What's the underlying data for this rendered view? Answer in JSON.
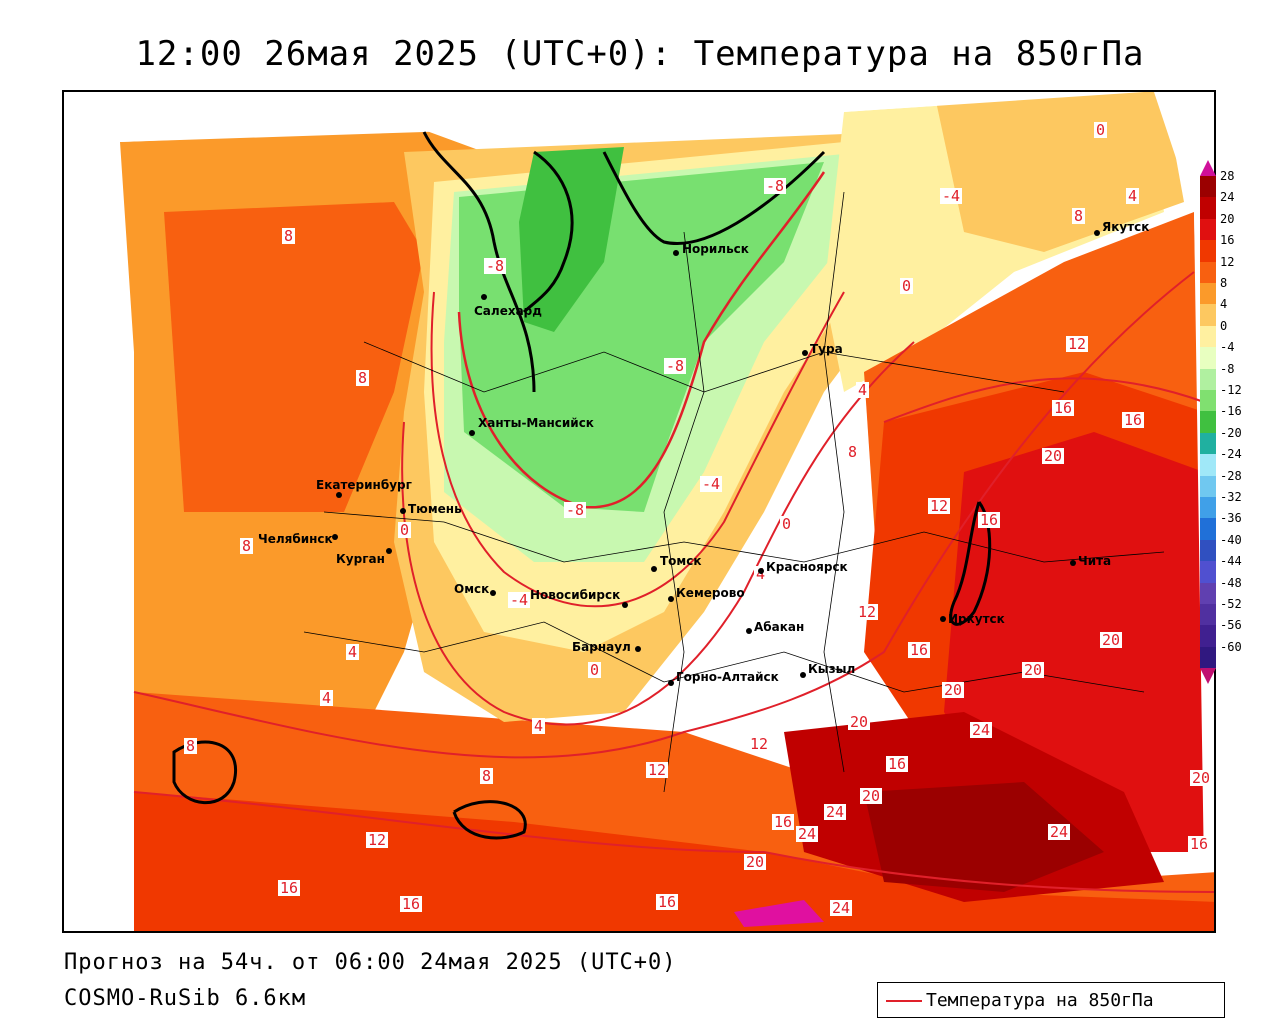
{
  "title": "12:00 26мая 2025 (UTC+0): Температура на 850гПа",
  "footer": {
    "forecast": "Прогноз на 54ч. от 06:00 24мая 2025 (UTC+0)",
    "model": "COSMO-RuSib 6.6км"
  },
  "legend": {
    "label": "Температура на 850гПа",
    "line_color": "#e0202a"
  },
  "colorbar": {
    "ticks": [
      "28",
      "24",
      "20",
      "16",
      "12",
      "8",
      "4",
      "0",
      "-4",
      "-8",
      "-12",
      "-16",
      "-20",
      "-24",
      "-28",
      "-32",
      "-36",
      "-40",
      "-44",
      "-48",
      "-52",
      "-56",
      "-60"
    ],
    "colors": [
      "#9b0000",
      "#c00000",
      "#e01010",
      "#f03800",
      "#f86010",
      "#fb9a2a",
      "#fdc860",
      "#fff0a0",
      "#e8ffc0",
      "#b0f0a0",
      "#80e070",
      "#40c040",
      "#20b0a0",
      "#a0e8f8",
      "#70c8f0",
      "#40a0e8",
      "#2070d8",
      "#3050c0",
      "#5050d0",
      "#6040b0",
      "#5030a0",
      "#402090",
      "#301880"
    ],
    "top_color": "#d0109a",
    "bottom_color": "#c01070"
  },
  "cities": [
    {
      "name": "Норильск"
    },
    {
      "name": "Салехард"
    },
    {
      "name": "Тура"
    },
    {
      "name": "Ханты-Мансийск"
    },
    {
      "name": "Екатеринбург"
    },
    {
      "name": "Тюмень"
    },
    {
      "name": "Челябинск"
    },
    {
      "name": "Курган"
    },
    {
      "name": "Омск"
    },
    {
      "name": "Новосибирск"
    },
    {
      "name": "Томск"
    },
    {
      "name": "Кемерово"
    },
    {
      "name": "Красноярск"
    },
    {
      "name": "Барнаул"
    },
    {
      "name": "Абакан"
    },
    {
      "name": "Иркутск"
    },
    {
      "name": "Горно-Алтайск"
    },
    {
      "name": "Кызыл"
    },
    {
      "name": "Чита"
    },
    {
      "name": "Якутск"
    }
  ],
  "isotherm_labels": [
    "-8",
    "-4",
    "0",
    "4",
    "8",
    "12",
    "16",
    "20",
    "24"
  ]
}
